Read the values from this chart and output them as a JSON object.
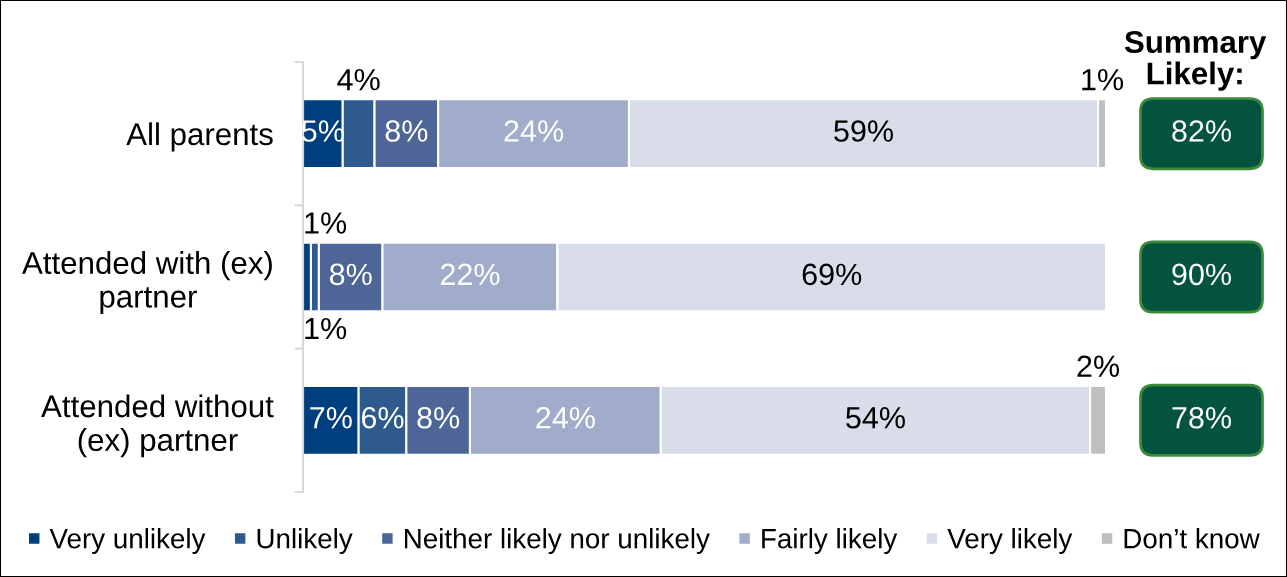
{
  "chart_data": {
    "type": "bar",
    "orientation": "horizontal",
    "stacked": true,
    "categories": [
      "All parents",
      "Attended with (ex)\npartner",
      "Attended without\n(ex) partner"
    ],
    "series": [
      {
        "name": "Very unlikely",
        "color": "#003f7d",
        "values": [
          5,
          1,
          7
        ],
        "value_labels": [
          "5%",
          "1%",
          "7%"
        ]
      },
      {
        "name": "Unlikely",
        "color": "#2e5a8e",
        "values": [
          4,
          1,
          6
        ],
        "value_labels": [
          "4%",
          "1%",
          "6%"
        ]
      },
      {
        "name": "Neither likely nor unlikely",
        "color": "#4d6697",
        "values": [
          8,
          8,
          8
        ],
        "value_labels": [
          "8%",
          "8%",
          "8%"
        ]
      },
      {
        "name": "Fairly likely",
        "color": "#a1acca",
        "values": [
          24,
          22,
          24
        ],
        "value_labels": [
          "24%",
          "22%",
          "24%"
        ]
      },
      {
        "name": "Very likely",
        "color": "#d9dde9",
        "values": [
          59,
          69,
          54
        ],
        "value_labels": [
          "59%",
          "69%",
          "54%"
        ]
      },
      {
        "name": "Don’t know",
        "color": "#bfbfbf",
        "values": [
          1,
          null,
          2
        ],
        "value_labels": [
          "1%",
          null,
          "2%"
        ]
      }
    ],
    "annotations": [
      "Summary\nLikely:",
      "82%",
      "90%",
      "78%"
    ],
    "legend": "bottom"
  }
}
